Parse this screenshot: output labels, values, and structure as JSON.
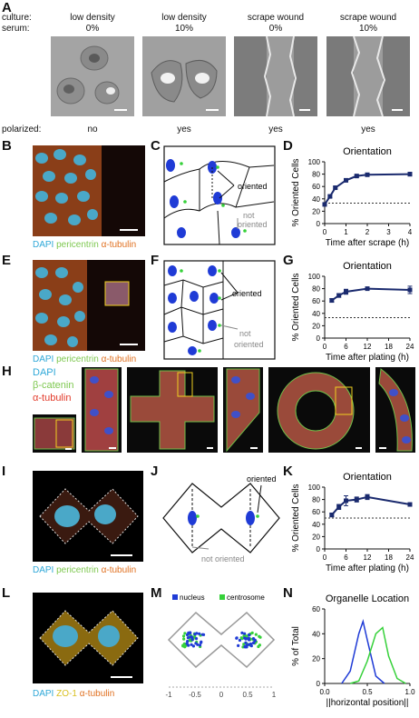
{
  "panel_letters": [
    "A",
    "B",
    "C",
    "D",
    "E",
    "F",
    "G",
    "H",
    "I",
    "J",
    "K",
    "L",
    "M",
    "N"
  ],
  "panelA": {
    "row_labels": {
      "culture": "culture:",
      "serum": "serum:",
      "polarized": "polarized:"
    },
    "columns": [
      {
        "culture": "low density",
        "serum": "0%",
        "polarized": "no"
      },
      {
        "culture": "low density",
        "serum": "10%",
        "polarized": "yes"
      },
      {
        "culture": "scrape wound",
        "serum": "0%",
        "polarized": "yes"
      },
      {
        "culture": "scrape wound",
        "serum": "10%",
        "polarized": "yes"
      }
    ]
  },
  "stain_labels": {
    "dapi": "DAPI",
    "pericentrin": "pericentrin",
    "tubulin": "α-tubulin",
    "catenin": "β-catenin",
    "zo1": "ZO-1"
  },
  "colors": {
    "dapi": "#2fa8d8",
    "green": "#7ec850",
    "red": "#e23a2a",
    "orange": "#e07020",
    "navy": "#1a2a6e",
    "nucleus": "#1f3bd6",
    "centrosome": "#36d13a"
  },
  "schematic_labels": {
    "oriented": "oriented",
    "not_oriented_1": "not",
    "not_oriented_2": "oriented",
    "not_oriented_inline": "not oriented"
  },
  "panelM_legend": {
    "nucleus": "nucleus",
    "centrosome": "centrosome",
    "ticks": [
      "-1",
      "-0.5",
      "0",
      "0.5",
      "1"
    ]
  },
  "chart_data": [
    {
      "panel": "D",
      "type": "line",
      "title": "Orientation",
      "xlabel": "Time after scrape (h)",
      "ylabel": "% Oriented Cells",
      "xlim": [
        0,
        4
      ],
      "ylim": [
        0,
        100
      ],
      "xticks": [
        "0",
        "1",
        "2",
        "3",
        "4"
      ],
      "yticks": [
        "0",
        "20",
        "40",
        "60",
        "80",
        "100"
      ],
      "series": [
        {
          "x": [
            0,
            0.25,
            0.5,
            1,
            1.5,
            2,
            4
          ],
          "y": [
            31,
            44,
            58,
            70,
            77,
            79,
            80
          ],
          "err": [
            2,
            2,
            2,
            2,
            2,
            2,
            3
          ]
        }
      ],
      "baseline": 33
    },
    {
      "panel": "G",
      "type": "line",
      "title": "Orientation",
      "xlabel": "Time after plating (h)",
      "ylabel": "% Oriented Cells",
      "xlim": [
        0,
        24
      ],
      "ylim": [
        0,
        100
      ],
      "xticks": [
        "0",
        "6",
        "12",
        "18",
        "24"
      ],
      "yticks": [
        "0",
        "20",
        "40",
        "60",
        "80",
        "100"
      ],
      "series": [
        {
          "x": [
            2,
            4,
            6,
            12,
            24
          ],
          "y": [
            61,
            69,
            75,
            80,
            78
          ],
          "err": [
            3,
            3,
            4,
            2,
            6
          ]
        }
      ],
      "baseline": 33
    },
    {
      "panel": "K",
      "type": "line",
      "title": "Orientation",
      "xlabel": "Time after plating (h)",
      "ylabel": "% Oriented Cells",
      "xlim": [
        0,
        24
      ],
      "ylim": [
        0,
        100
      ],
      "xticks": [
        "0",
        "6",
        "12",
        "18",
        "24"
      ],
      "yticks": [
        "0",
        "20",
        "40",
        "60",
        "80",
        "100"
      ],
      "series": [
        {
          "x": [
            2,
            4,
            6,
            9,
            12,
            24
          ],
          "y": [
            55,
            68,
            78,
            80,
            84,
            72
          ],
          "err": [
            3,
            4,
            8,
            4,
            4,
            2
          ]
        }
      ],
      "baseline": 50
    },
    {
      "panel": "N",
      "type": "line",
      "title": "Organelle Location",
      "xlabel": "||horizontal position||",
      "ylabel": "% of Total",
      "xlim": [
        0,
        1
      ],
      "ylim": [
        0,
        60
      ],
      "xticks": [
        "0.0",
        "0.5",
        "1.0"
      ],
      "yticks": [
        "0",
        "20",
        "40",
        "60"
      ],
      "series": [
        {
          "name": "nucleus",
          "x": [
            0.2,
            0.3,
            0.4,
            0.45,
            0.5,
            0.6,
            0.7
          ],
          "y": [
            0,
            10,
            40,
            50,
            35,
            6,
            0
          ]
        },
        {
          "name": "centrosome",
          "x": [
            0.3,
            0.4,
            0.5,
            0.6,
            0.68,
            0.75,
            0.85,
            0.95
          ],
          "y": [
            0,
            2,
            18,
            40,
            45,
            22,
            4,
            0
          ]
        }
      ]
    }
  ]
}
